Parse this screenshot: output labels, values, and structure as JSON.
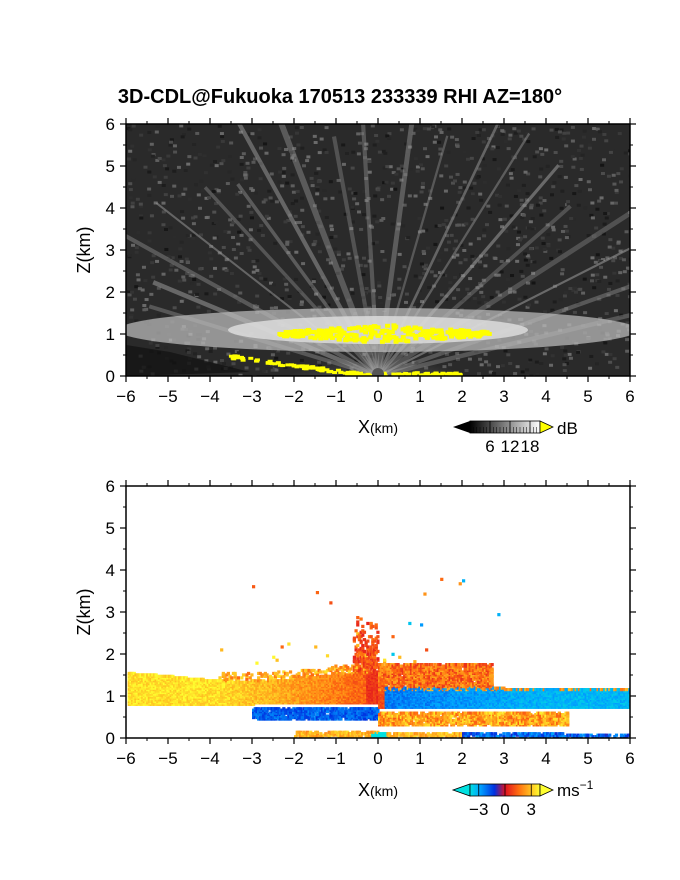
{
  "title": "3D-CDL@Fukuoka 170513 233339 RHI AZ=180",
  "title_degree": "o",
  "chart_data": [
    {
      "type": "heatmap",
      "quantity": "backscatter intensity",
      "xlabel": "X",
      "xlabel_unit": "(km)",
      "ylabel": "Z(km)",
      "xlim": [
        -6,
        6
      ],
      "ylim": [
        0,
        6
      ],
      "xticks": [
        -6,
        -5,
        -4,
        -3,
        -2,
        -1,
        0,
        1,
        2,
        3,
        4,
        5,
        6
      ],
      "yticks": [
        0,
        1,
        2,
        3,
        4,
        5,
        6
      ],
      "colorbar": {
        "unit": "dB",
        "ticks": [
          6,
          12,
          18
        ],
        "range": [
          0,
          21
        ],
        "colormap": "grayscale",
        "over_color": "#ffff00"
      },
      "features": [
        {
          "name": "yellow high-intensity layer",
          "z_km": 1.05,
          "x_range_km": [
            -2.4,
            2.6
          ]
        },
        {
          "name": "ground clutter band",
          "x_range_km": [
            -3.6,
            2.0
          ],
          "z_km": [
            0.0,
            0.55
          ]
        }
      ]
    },
    {
      "type": "heatmap",
      "quantity": "Doppler velocity",
      "xlabel": "X",
      "xlabel_unit": "(km)",
      "ylabel": "Z(km)",
      "xlim": [
        -6,
        6
      ],
      "ylim": [
        0,
        6
      ],
      "xticks": [
        -6,
        -5,
        -4,
        -3,
        -2,
        -1,
        0,
        1,
        2,
        3,
        4,
        5,
        6
      ],
      "yticks": [
        0,
        1,
        2,
        3,
        4,
        5,
        6
      ],
      "colorbar": {
        "unit": "ms",
        "unit_exponent": "−1",
        "ticks": [
          "−3",
          "0",
          "3"
        ],
        "range": [
          -4,
          4
        ],
        "colormap": "cyan-blue-red-yellow"
      },
      "features": [
        {
          "name": "positive velocity layer (west)",
          "x_range_km": [
            -6,
            0
          ],
          "z_km": [
            0.8,
            1.55
          ],
          "value_ms": 3
        },
        {
          "name": "negative velocity layer (east)",
          "x_range_km": [
            0,
            6
          ],
          "z_km": [
            0.75,
            1.25
          ],
          "value_ms": -3
        },
        {
          "name": "sparse scatter aloft",
          "x_range_km": [
            -4,
            3.5
          ],
          "z_km": [
            1.5,
            3.8
          ]
        }
      ]
    }
  ]
}
